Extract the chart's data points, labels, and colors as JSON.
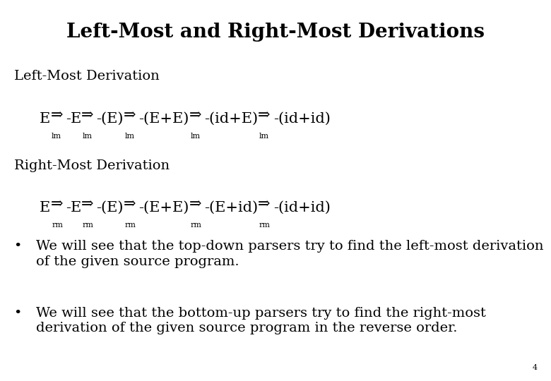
{
  "title": "Left-Most and Right-Most Derivations",
  "title_fontsize": 20,
  "bg_color": "#ffffff",
  "text_color": "#000000",
  "lm_label": "Left-Most Derivation",
  "rm_label": "Right-Most Derivation",
  "lm_steps": [
    "E",
    "-E",
    "-(E)",
    "-(E+E)",
    "-(id+E)",
    "-(id+id)"
  ],
  "rm_steps": [
    "E",
    "-E",
    "-(E)",
    "-(E+E)",
    "-(E+id)",
    "-(id+id)"
  ],
  "lm_subscript": "lm",
  "rm_subscript": "rm",
  "bullet1_line1": "We will see that the top-down parsers try to find the left-most derivation",
  "bullet1_line2": "of the given source program.",
  "bullet2_line1": "We will see that the bottom-up parsers try to find the right-most",
  "bullet2_line2": "derivation of the given source program in the reverse order.",
  "page_number": "4",
  "label_fontsize": 14,
  "deriv_fontsize": 15,
  "bullet_fontsize": 14,
  "sub_fontsize": 8
}
